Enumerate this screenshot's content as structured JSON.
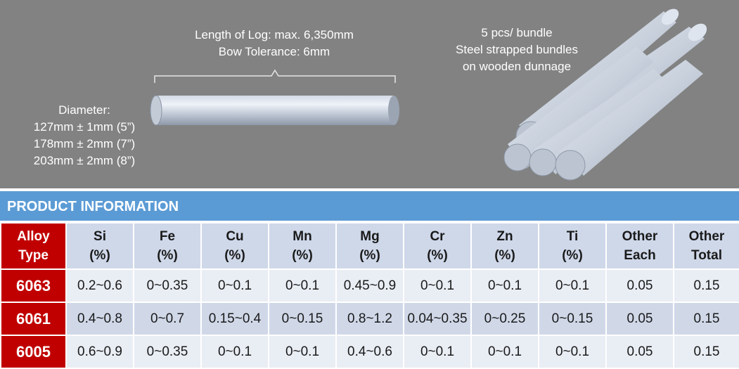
{
  "notes": {
    "log": [
      "Length of Log: max. 6,350mm",
      "Bow Tolerance: 6mm"
    ],
    "bundle": [
      "5 pcs/ bundle",
      "Steel strapped bundles",
      "on wooden dunnage"
    ],
    "diameter": [
      "Diameter:",
      "127mm ± 1mm (5”)",
      "178mm ± 2mm (7”)",
      "203mm ± 2mm (8”)"
    ]
  },
  "section_title": "PRODUCT INFORMATION",
  "table": {
    "headers": [
      [
        "Alloy",
        "Type"
      ],
      [
        "Si",
        "(%)"
      ],
      [
        "Fe",
        "(%)"
      ],
      [
        "Cu",
        "(%)"
      ],
      [
        "Mn",
        "(%)"
      ],
      [
        "Mg",
        "(%)"
      ],
      [
        "Cr",
        "(%)"
      ],
      [
        "Zn",
        "(%)"
      ],
      [
        "Ti",
        "(%)"
      ],
      [
        "Other",
        "Each"
      ],
      [
        "Other",
        "Total"
      ]
    ],
    "rows": [
      [
        "6063",
        "0.2~0.6",
        "0~0.35",
        "0~0.1",
        "0~0.1",
        "0.45~0.9",
        "0~0.1",
        "0~0.1",
        "0~0.1",
        "0.05",
        "0.15"
      ],
      [
        "6061",
        "0.4~0.8",
        "0~0.7",
        "0.15~0.4",
        "0~0.15",
        "0.8~1.2",
        "0.04~0.35",
        "0~0.25",
        "0~0.15",
        "0.05",
        "0.15"
      ],
      [
        "6005",
        "0.6~0.9",
        "0~0.35",
        "0~0.1",
        "0~0.1",
        "0.4~0.6",
        "0~0.1",
        "0~0.1",
        "0~0.1",
        "0.05",
        "0.15"
      ]
    ]
  },
  "colors": {
    "background": "#828282",
    "section_bar": "#5b9bd5",
    "alloy_red": "#c00000",
    "header_cell": "#cfd8e9",
    "row_light": "#e9edf4",
    "row_alt": "#d0d8e8"
  }
}
